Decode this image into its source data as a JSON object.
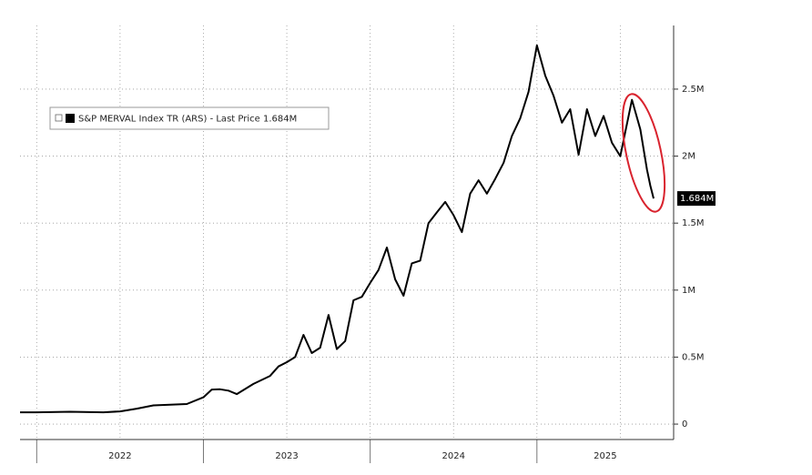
{
  "chart_data": {
    "type": "line",
    "series": [
      {
        "name": "S&P MERVAL Index TR (ARS)",
        "color": "#000000",
        "values": [
          88000,
          88000,
          92000,
          88000,
          95000,
          115000,
          140000,
          145000,
          150000,
          200000,
          258000,
          260000,
          250000,
          224000,
          300000,
          360000,
          430000,
          462000,
          500000,
          666000,
          530000,
          570000,
          815000,
          560000,
          620000,
          924000,
          950000,
          1053000,
          1150000,
          1318000,
          1080000,
          958000,
          1200000,
          1220000,
          1500000,
          1580000,
          1658000,
          1560000,
          1433000,
          1720000,
          1820000,
          1720000,
          1830000,
          1950000,
          2150000,
          2283000,
          2480000,
          2826000,
          2600000,
          2450000,
          2250000,
          2350000,
          2010000,
          2350000,
          2150000,
          2300000,
          2100000,
          2000000,
          2420000,
          2200000,
          1900000,
          1780000,
          1684000
        ],
        "last_price_caption": "- Last Price",
        "last_price_label": "1.684M"
      }
    ],
    "x": [
      2021.9,
      2022.0,
      2022.2,
      2022.4,
      2022.5,
      2022.6,
      2022.7,
      2022.8,
      2022.9,
      2023.0,
      2023.05,
      2023.1,
      2023.15,
      2023.2,
      2023.3,
      2023.4,
      2023.45,
      2023.5,
      2023.55,
      2023.6,
      2023.65,
      2023.7,
      2023.75,
      2023.8,
      2023.85,
      2023.9,
      2023.95,
      2024.0,
      2024.05,
      2024.1,
      2024.15,
      2024.2,
      2024.25,
      2024.3,
      2024.35,
      2024.4,
      2024.45,
      2024.5,
      2024.55,
      2024.6,
      2024.65,
      2024.7,
      2024.75,
      2024.8,
      2024.85,
      2024.9,
      2024.95,
      2025.0,
      2025.05,
      2025.1,
      2025.15,
      2025.2,
      2025.25,
      2025.3,
      2025.35,
      2025.4,
      2025.45,
      2025.5,
      2025.57,
      2025.62,
      2025.66,
      2025.68,
      2025.7
    ],
    "xlim": [
      2021.9,
      2025.82
    ],
    "xticks": [
      {
        "value": 2022.5,
        "label": "2022"
      },
      {
        "value": 2023.5,
        "label": "2023"
      },
      {
        "value": 2024.5,
        "label": "2024"
      },
      {
        "value": 2025.5,
        "label": "2025"
      }
    ],
    "ylim": [
      -115000,
      2975000
    ],
    "yticks": [
      0,
      {
        "value": 500000,
        "label": "0.5M"
      },
      {
        "value": 1000000,
        "label": "1M"
      },
      {
        "value": 1500000,
        "label": "1.5M"
      },
      {
        "value": 2000000,
        "label": "2M"
      },
      {
        "value": 2500000,
        "label": "2.5M"
      }
    ],
    "grid": true,
    "legend": "upper left"
  }
}
